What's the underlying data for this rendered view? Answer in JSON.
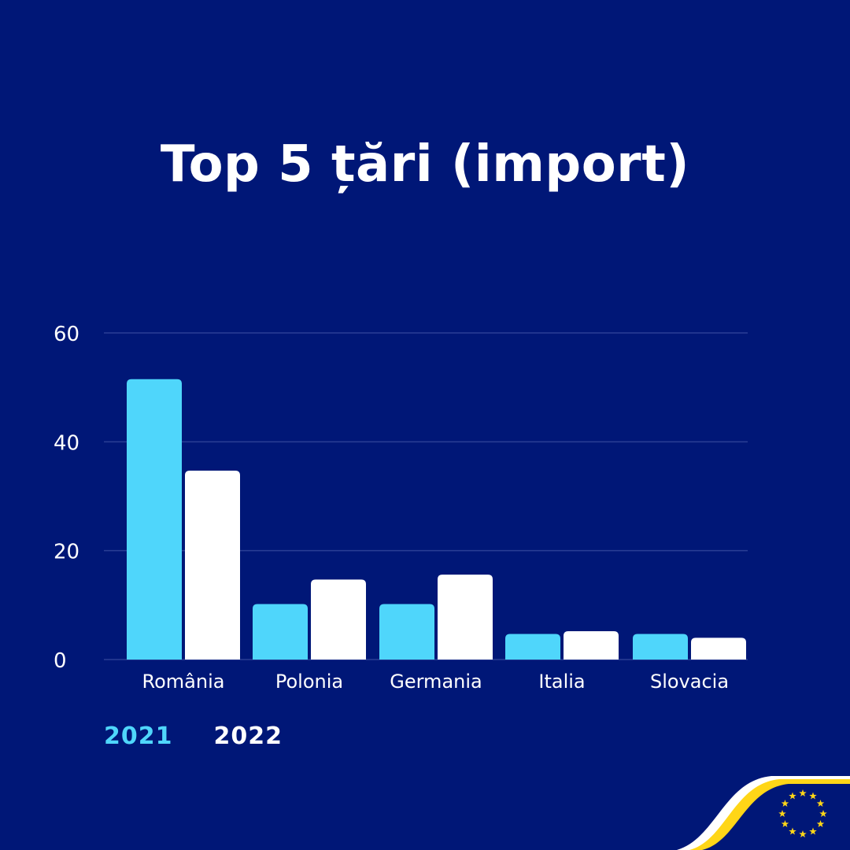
{
  "title": "Top 5 țări (import)",
  "colors": {
    "background": "#001777",
    "series_2021": "#4fd6fb",
    "series_2022": "#ffffff",
    "grid": "#2a3f95",
    "eu_yellow": "#ffd617"
  },
  "legend": [
    "2021",
    "2022"
  ],
  "chart_data": {
    "type": "bar",
    "title": "Top 5 țări (import)",
    "categories": [
      "România",
      "Polonia",
      "Germania",
      "Italia",
      "Slovacia"
    ],
    "series": [
      {
        "name": "2021",
        "values": [
          51.5,
          10.2,
          10.2,
          4.7,
          4.7
        ]
      },
      {
        "name": "2022",
        "values": [
          34.7,
          14.7,
          15.6,
          5.2,
          4.0
        ]
      }
    ],
    "yticks": [
      "0",
      "20",
      "40",
      "60"
    ],
    "ylim": [
      0,
      60
    ],
    "grid": true,
    "legend_position": "bottom-left"
  },
  "eu_logo": {
    "icon": "eu-stars-icon",
    "star_count": 12
  }
}
